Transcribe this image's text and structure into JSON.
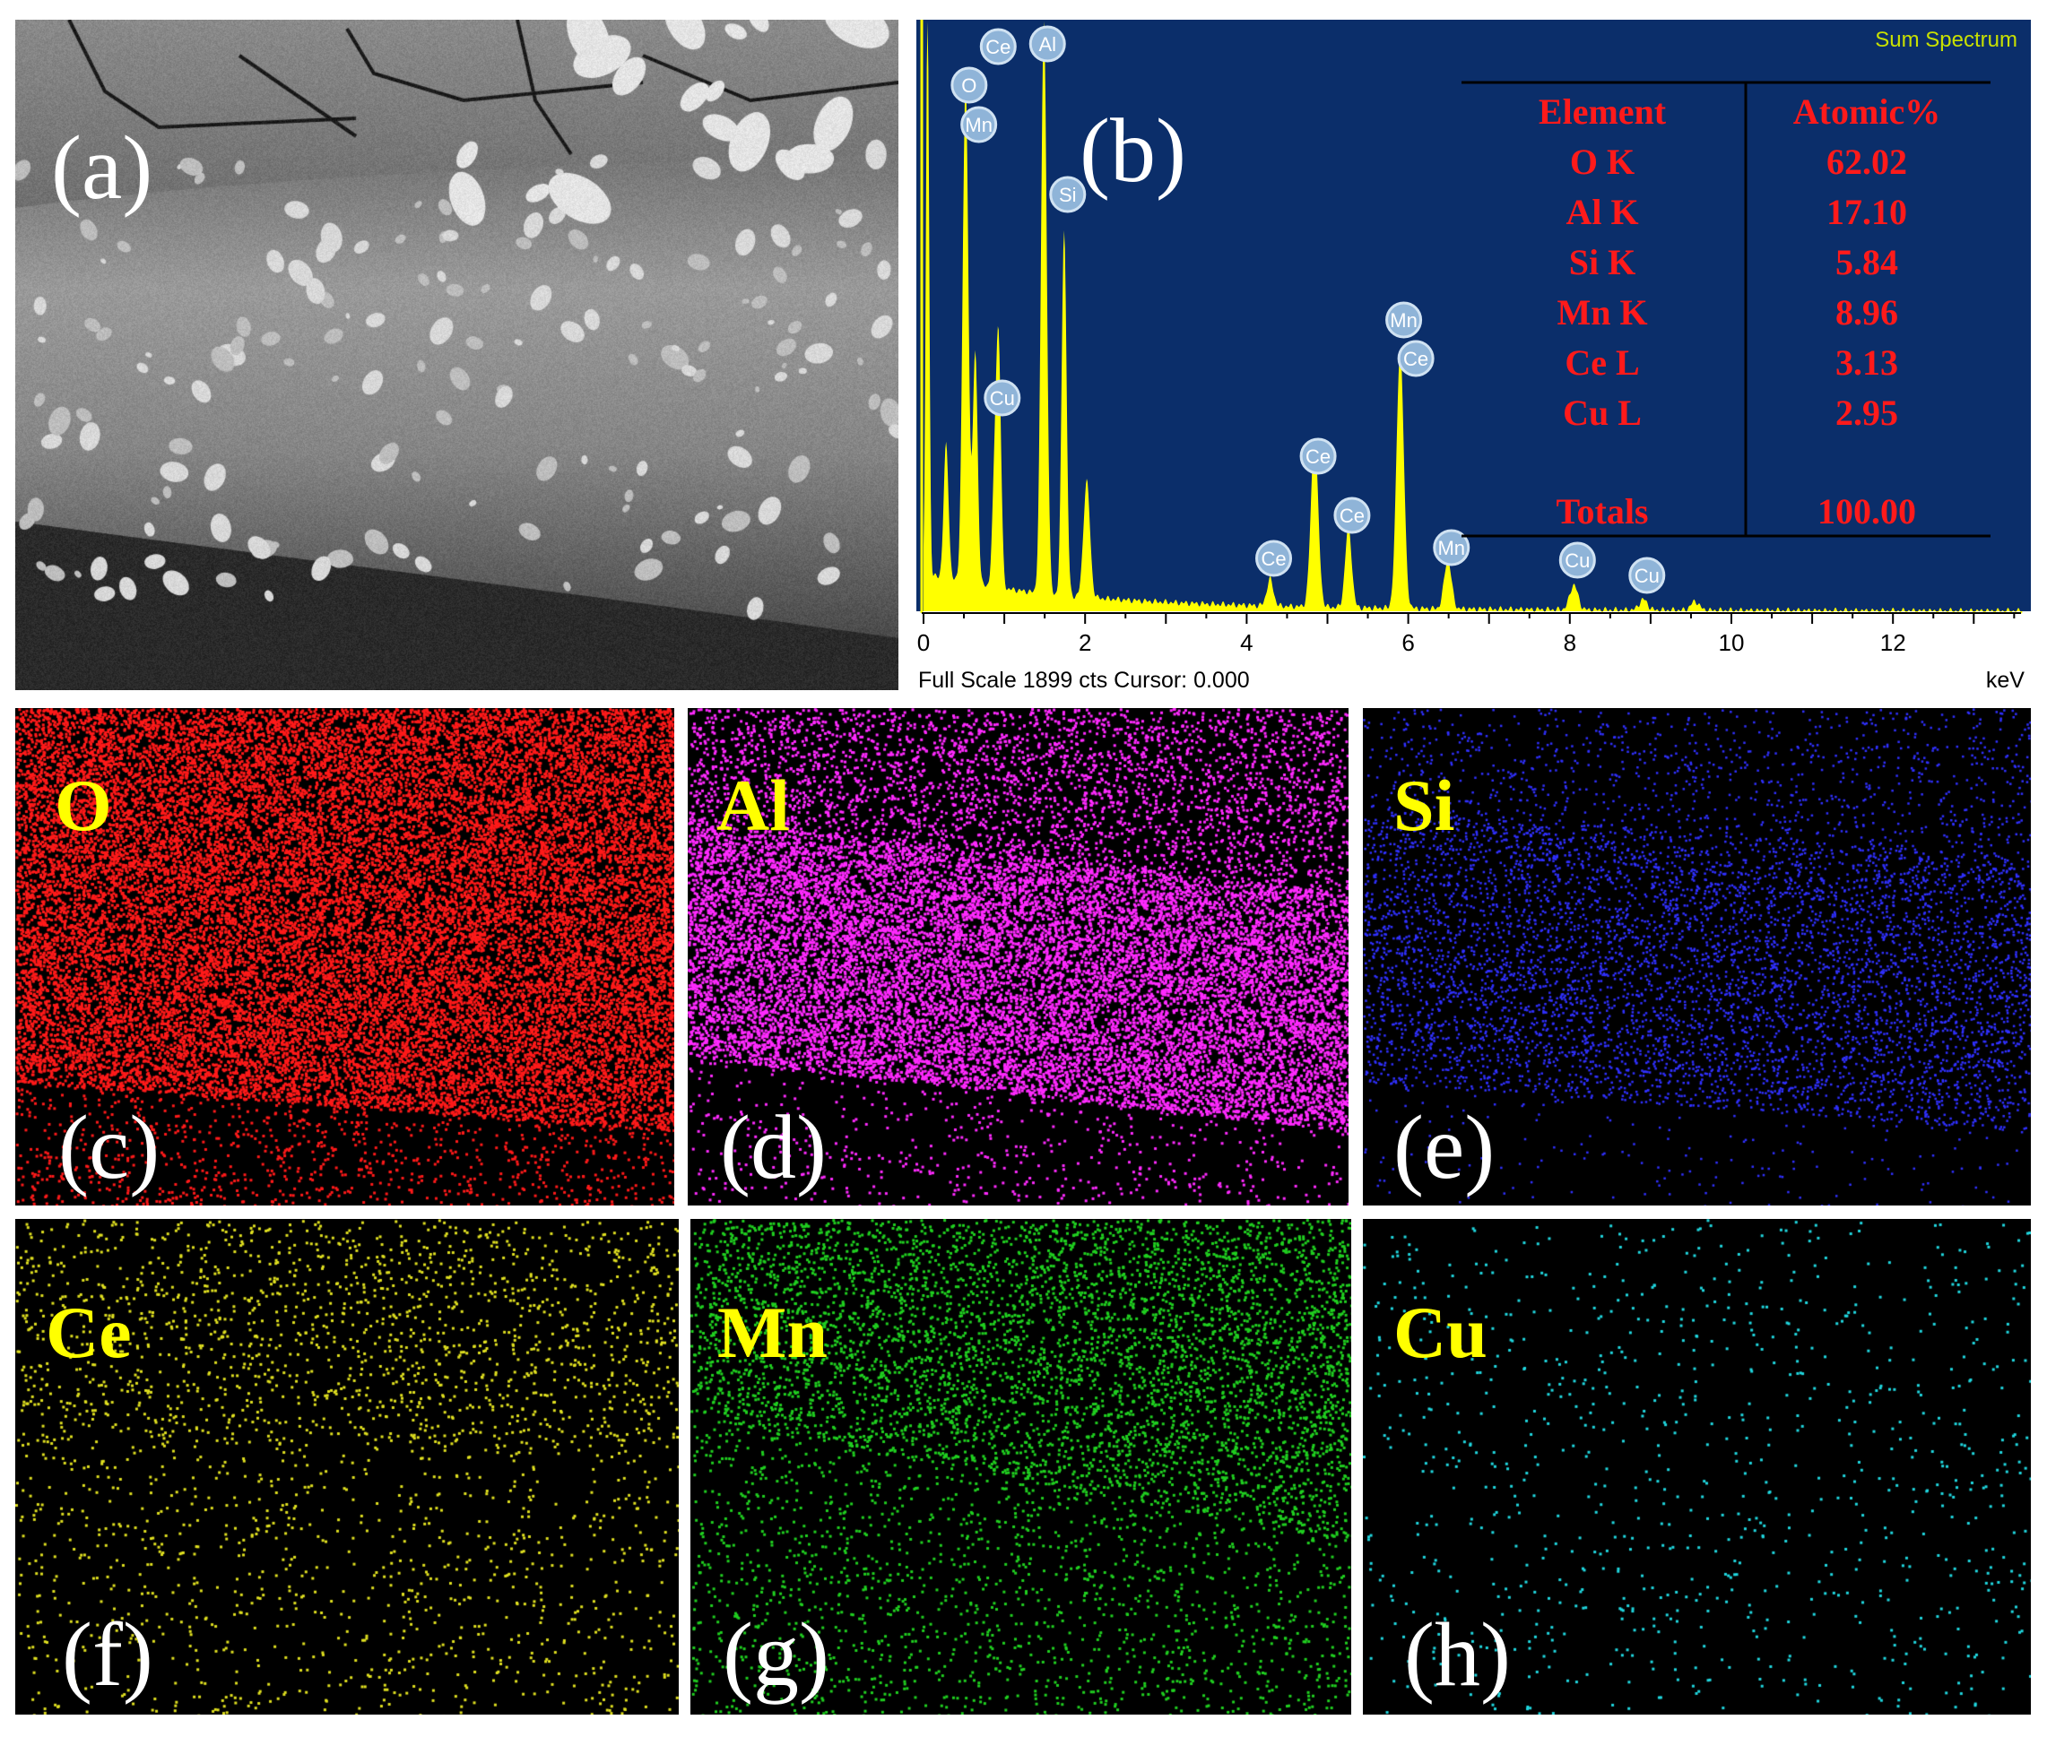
{
  "panels": {
    "a": {
      "letter": "(a)"
    },
    "b": {
      "letter": "(b)"
    },
    "c": {
      "letter": "(c)",
      "element": "O",
      "color": "#ff1a1a"
    },
    "d": {
      "letter": "(d)",
      "element": "Al",
      "color": "#ff2aff"
    },
    "e": {
      "letter": "(e)",
      "element": "Si",
      "color": "#3030ff"
    },
    "f": {
      "letter": "(f)",
      "element": "Ce",
      "color": "#e0e020"
    },
    "g": {
      "letter": "(g)",
      "element": "Mn",
      "color": "#20d020"
    },
    "h": {
      "letter": "(h)",
      "element": "Cu",
      "color": "#20d8e0"
    }
  },
  "spectrum": {
    "title": "Sum Spectrum",
    "footer_left": "Full Scale 1899 cts Cursor: 0.000",
    "unit": "keV",
    "background_color": "#0b2e6a",
    "trace_color": "#ffff00",
    "x_ticks": [
      "0",
      "2",
      "4",
      "6",
      "8",
      "10",
      "12"
    ],
    "peak_labels": [
      {
        "text": "Ce",
        "kev": 0.88
      },
      {
        "text": "O",
        "kev": 0.52
      },
      {
        "text": "Mn",
        "kev": 0.64
      },
      {
        "text": "Al",
        "kev": 1.49
      },
      {
        "text": "Si",
        "kev": 1.74
      },
      {
        "text": "Cu",
        "kev": 0.93
      },
      {
        "text": "Ce",
        "kev": 4.84
      },
      {
        "text": "Ce",
        "kev": 5.26
      },
      {
        "text": "Ce",
        "kev": 4.29
      },
      {
        "text": "Mn",
        "kev": 5.9
      },
      {
        "text": "Ce",
        "kev": 6.05
      },
      {
        "text": "Mn",
        "kev": 6.49
      },
      {
        "text": "Cu",
        "kev": 8.05
      },
      {
        "text": "Cu",
        "kev": 8.91
      }
    ],
    "table": {
      "headers": [
        "Element",
        "Atomic%"
      ],
      "rows": [
        {
          "element": "O K",
          "value": "62.02"
        },
        {
          "element": "Al K",
          "value": "17.10"
        },
        {
          "element": "Si K",
          "value": "5.84"
        },
        {
          "element": "Mn K",
          "value": "8.96"
        },
        {
          "element": "Ce L",
          "value": "3.13"
        },
        {
          "element": "Cu L",
          "value": "2.95"
        }
      ],
      "total_label": "Totals",
      "total_value": "100.00"
    }
  }
}
